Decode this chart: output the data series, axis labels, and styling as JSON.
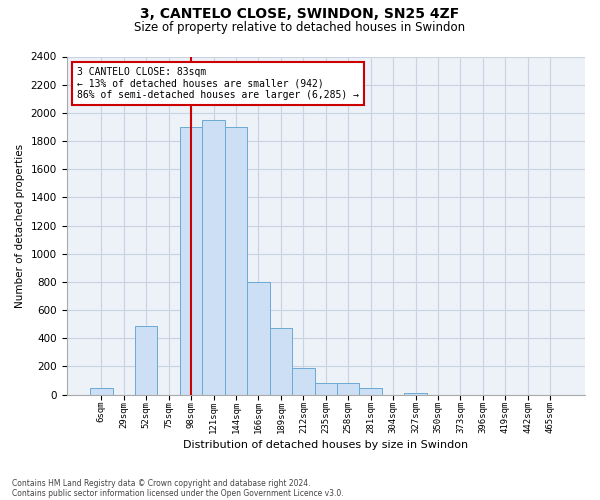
{
  "title": "3, CANTELO CLOSE, SWINDON, SN25 4ZF",
  "subtitle": "Size of property relative to detached houses in Swindon",
  "xlabel": "Distribution of detached houses by size in Swindon",
  "ylabel": "Number of detached properties",
  "footnote1": "Contains HM Land Registry data © Crown copyright and database right 2024.",
  "footnote2": "Contains public sector information licensed under the Open Government Licence v3.0.",
  "categories": [
    "6sqm",
    "29sqm",
    "52sqm",
    "75sqm",
    "98sqm",
    "121sqm",
    "144sqm",
    "166sqm",
    "189sqm",
    "212sqm",
    "235sqm",
    "258sqm",
    "281sqm",
    "304sqm",
    "327sqm",
    "350sqm",
    "373sqm",
    "396sqm",
    "419sqm",
    "442sqm",
    "465sqm"
  ],
  "values": [
    50,
    0,
    490,
    0,
    1900,
    1950,
    1900,
    800,
    470,
    190,
    80,
    80,
    50,
    0,
    10,
    0,
    0,
    0,
    0,
    0,
    0
  ],
  "bar_color": "#ccdff5",
  "bar_edge_color": "#6aaad4",
  "grid_color": "#c8d4e4",
  "background_color": "#edf1f8",
  "property_label": "3 CANTELO CLOSE: 83sqm",
  "annotation_line1": "← 13% of detached houses are smaller (942)",
  "annotation_line2": "86% of semi-detached houses are larger (6,285) →",
  "vline_color": "#cc0000",
  "vline_x": 4.0,
  "annotation_box_color": "#ffffff",
  "annotation_box_edge": "#cc0000",
  "ylim_max": 2400,
  "yticks": [
    0,
    200,
    400,
    600,
    800,
    1000,
    1200,
    1400,
    1600,
    1800,
    2000,
    2200,
    2400
  ]
}
